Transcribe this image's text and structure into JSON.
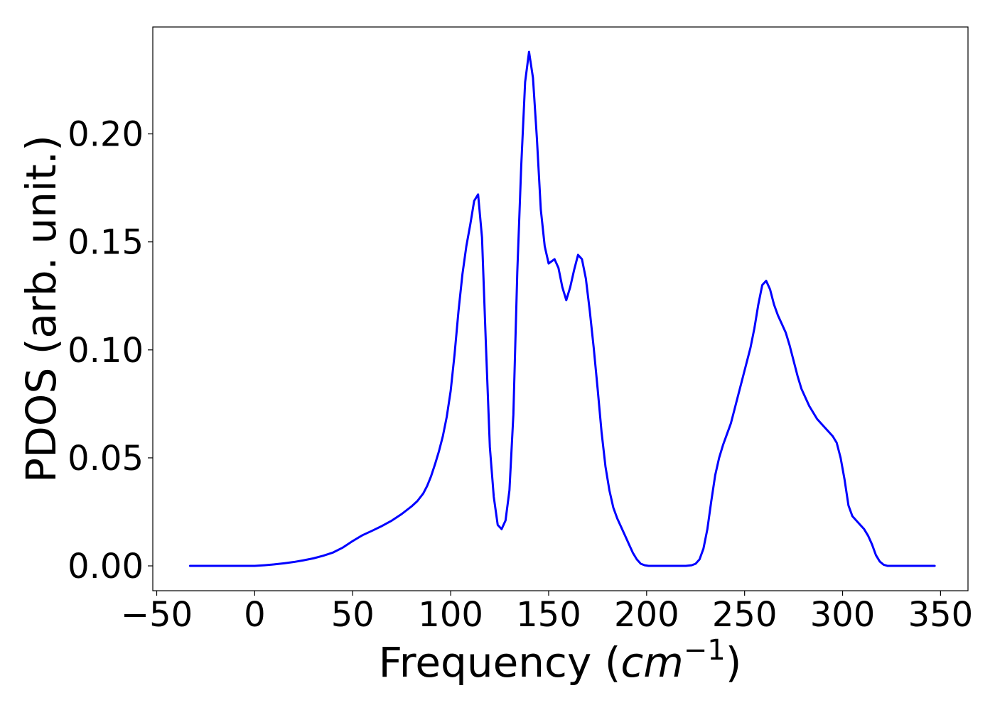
{
  "chart_data": {
    "type": "line",
    "title": "",
    "xlabel": "Frequency (",
    "xlabel_math": "cm",
    "xlabel_sup": "−1",
    "xlabel_close": ")",
    "ylabel": "PDOS (arb. unit.)",
    "xlim": [
      -52,
      364
    ],
    "ylim": [
      -0.0115,
      0.2495
    ],
    "xticks": [
      -50,
      0,
      50,
      100,
      150,
      200,
      250,
      300,
      350
    ],
    "xtick_labels": [
      "−50",
      "0",
      "50",
      "100",
      "150",
      "200",
      "250",
      "300",
      "350"
    ],
    "yticks": [
      0.0,
      0.05,
      0.1,
      0.15,
      0.2
    ],
    "ytick_labels": [
      "0.00",
      "0.05",
      "0.10",
      "0.15",
      "0.20"
    ],
    "grid": false,
    "legend": false,
    "colors": {
      "line": "#0000ff",
      "axes": "#000000",
      "background": "#ffffff"
    },
    "series": [
      {
        "color": "#0000ff",
        "x": [
          -33,
          0,
          5,
          10,
          15,
          20,
          25,
          30,
          35,
          40,
          45,
          50,
          55,
          60,
          65,
          70,
          75,
          80,
          83,
          86,
          88,
          90,
          92,
          94,
          96,
          98,
          100,
          102,
          104,
          106,
          108,
          110,
          112,
          114,
          116,
          118,
          120,
          122,
          124,
          126,
          128,
          130,
          132,
          134,
          136,
          138,
          140,
          142,
          144,
          146,
          148,
          150,
          153,
          155,
          157,
          159,
          161,
          163,
          165,
          167,
          169,
          171,
          173,
          175,
          177,
          179,
          181,
          183,
          185,
          187,
          189,
          191,
          193,
          195,
          197,
          199,
          201,
          205,
          210,
          215,
          220,
          223,
          225,
          227,
          229,
          231,
          233,
          235,
          237,
          239,
          241,
          243,
          245,
          247,
          249,
          251,
          253,
          255,
          257,
          259,
          261,
          263,
          265,
          267,
          269,
          271,
          273,
          275,
          277,
          279,
          281,
          283,
          285,
          287,
          289,
          291,
          293,
          295,
          297,
          299,
          301,
          303,
          305,
          307,
          309,
          311,
          313,
          315,
          317,
          319,
          321,
          323,
          325,
          330,
          340,
          347
        ],
        "y": [
          0,
          0,
          0.0003,
          0.0007,
          0.0012,
          0.0018,
          0.0026,
          0.0035,
          0.0047,
          0.0062,
          0.0085,
          0.0115,
          0.0142,
          0.0163,
          0.0185,
          0.021,
          0.024,
          0.0275,
          0.03,
          0.0335,
          0.037,
          0.0415,
          0.047,
          0.053,
          0.06,
          0.069,
          0.081,
          0.098,
          0.118,
          0.135,
          0.148,
          0.158,
          0.169,
          0.172,
          0.152,
          0.102,
          0.055,
          0.032,
          0.019,
          0.017,
          0.021,
          0.035,
          0.07,
          0.136,
          0.185,
          0.224,
          0.238,
          0.226,
          0.198,
          0.165,
          0.148,
          0.14,
          0.142,
          0.138,
          0.129,
          0.123,
          0.129,
          0.137,
          0.144,
          0.142,
          0.133,
          0.118,
          0.101,
          0.082,
          0.062,
          0.046,
          0.035,
          0.027,
          0.022,
          0.018,
          0.014,
          0.01,
          0.006,
          0.003,
          0.001,
          0.0003,
          0,
          0,
          0,
          0,
          0,
          0.0003,
          0.001,
          0.003,
          0.008,
          0.017,
          0.03,
          0.042,
          0.05,
          0.056,
          0.061,
          0.066,
          0.073,
          0.08,
          0.087,
          0.094,
          0.101,
          0.11,
          0.121,
          0.13,
          0.132,
          0.128,
          0.121,
          0.116,
          0.112,
          0.108,
          0.102,
          0.095,
          0.088,
          0.082,
          0.078,
          0.074,
          0.071,
          0.068,
          0.066,
          0.064,
          0.062,
          0.06,
          0.057,
          0.05,
          0.04,
          0.028,
          0.023,
          0.021,
          0.019,
          0.017,
          0.014,
          0.01,
          0.005,
          0.002,
          0.0005,
          0,
          0,
          0,
          0,
          0
        ]
      }
    ]
  }
}
